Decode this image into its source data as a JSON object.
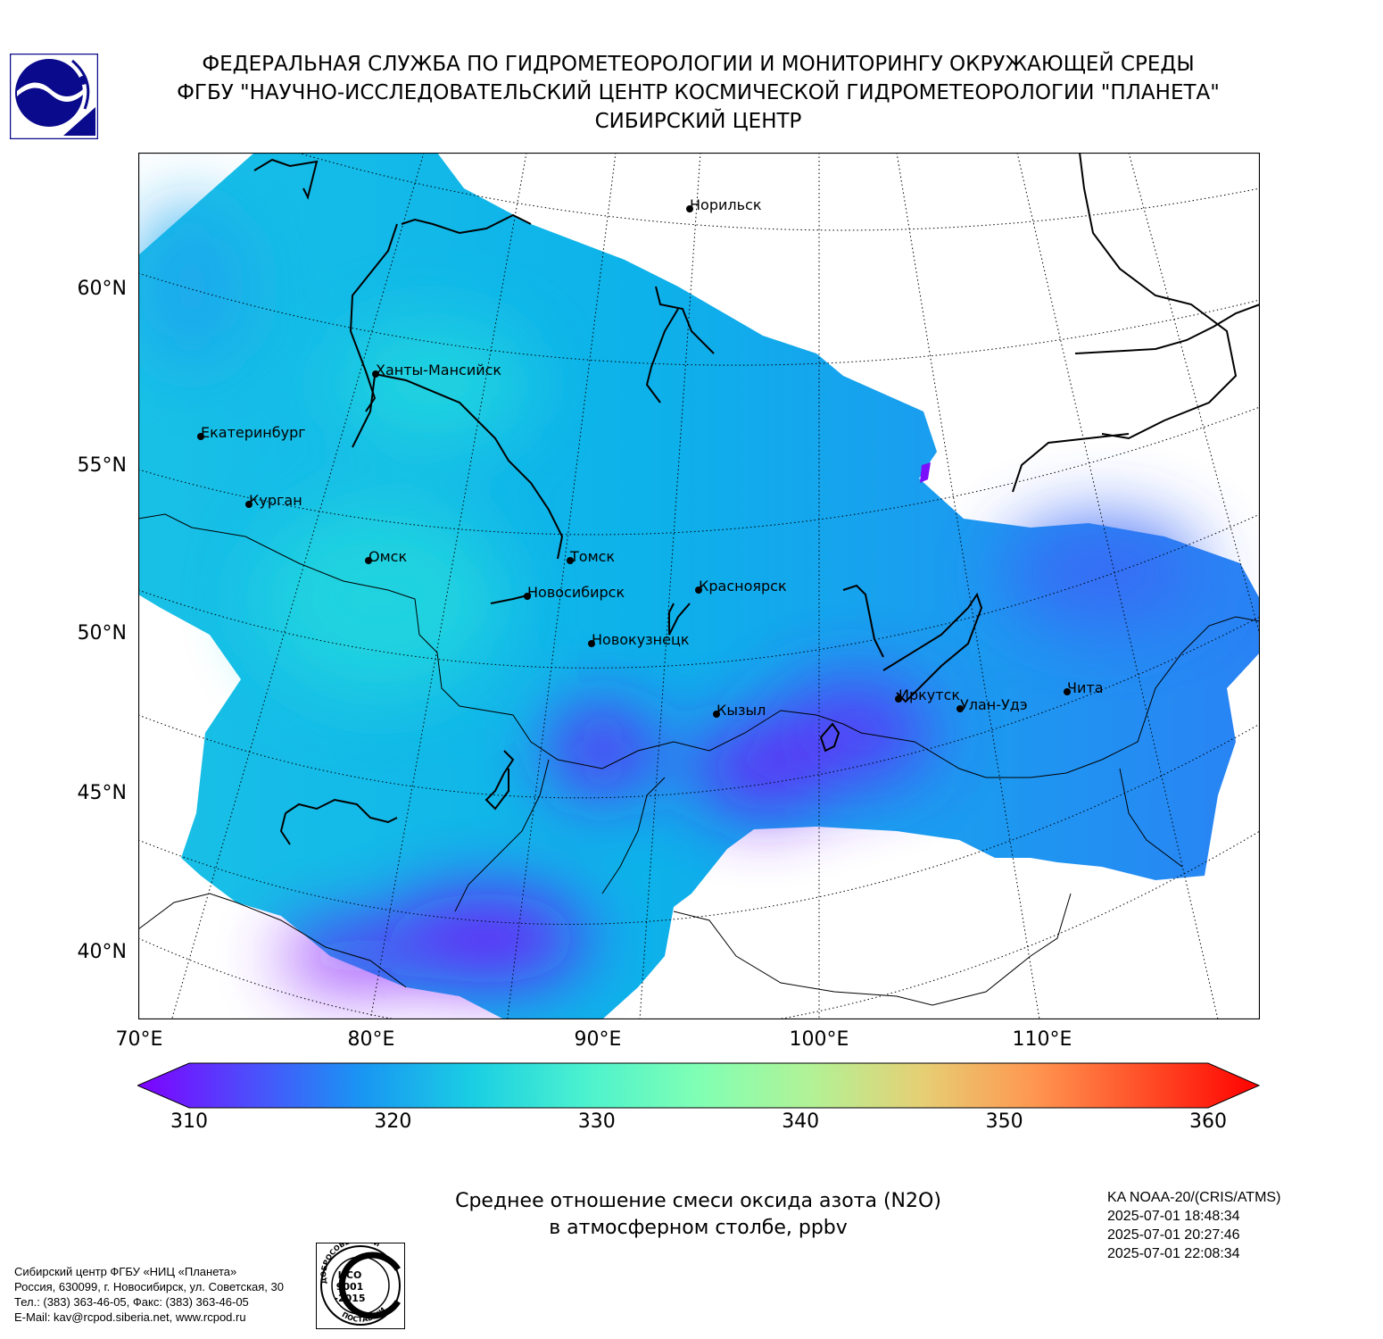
{
  "header": {
    "line1": "ФЕДЕРАЛЬНАЯ СЛУЖБА ПО ГИДРОМЕТЕОРОЛОГИИ И МОНИТОРИНГУ ОКРУЖАЮЩЕЙ СРЕДЫ",
    "line2": "ФГБУ \"НАУЧНО-ИССЛЕДОВАТЕЛЬСКИЙ ЦЕНТР КОСМИЧЕСКОЙ ГИДРОМЕТЕОРОЛОГИИ \"ПЛАНЕТА\"",
    "line3": "СИБИРСКИЙ ЦЕНТР"
  },
  "logo": {
    "name": "planeta-logo",
    "color": "#0a0a8c"
  },
  "map": {
    "lat_labels": [
      "60°N",
      "55°N",
      "50°N",
      "45°N",
      "40°N"
    ],
    "lon_labels": [
      "70°E",
      "80°E",
      "90°E",
      "100°E",
      "110°E"
    ],
    "cities": [
      {
        "name": "Норильск"
      },
      {
        "name": "Ханты-Мансийск"
      },
      {
        "name": "Екатеринбург"
      },
      {
        "name": "Курган"
      },
      {
        "name": "Омск"
      },
      {
        "name": "Томск"
      },
      {
        "name": "Новосибирск"
      },
      {
        "name": "Красноярск"
      },
      {
        "name": "Новокузнецк"
      },
      {
        "name": "Кызыл"
      },
      {
        "name": "Иркутск"
      },
      {
        "name": "Улан-Удэ"
      },
      {
        "name": "Чита"
      }
    ]
  },
  "colorbar": {
    "min": 310,
    "max": 360,
    "ticks": [
      "310",
      "320",
      "330",
      "340",
      "350",
      "360"
    ],
    "colors": [
      "#7f00ff",
      "#4d4dfc",
      "#1996f3",
      "#1acfe3",
      "#4cf2ce",
      "#80ffb4",
      "#b2f296",
      "#e6cf74",
      "#ff9650",
      "#ff4d27",
      "#ff0000"
    ]
  },
  "title": {
    "line1": "Среднее отношение смеси оксида азота (N2O)",
    "line2": "в атмосферном столбе, ppbv"
  },
  "meta": {
    "satellite": "KA NOAA-20/(CRIS/ATMS)",
    "times": [
      "2025-07-01 18:48:34",
      "2025-07-01 20:27:46",
      "2025-07-01 22:08:34"
    ]
  },
  "footer": {
    "lines": [
      "Сибирский центр ФГБУ «НИЦ «Планета»",
      "Россия, 630099, г. Новосибирск, ул. Советская, 30",
      "Тел.: (383) 363-46-05, Факс: (383) 363-46-05",
      "E-Mail: kav@rcpod.siberia.net, www.rcpod.ru"
    ]
  },
  "iso_stamp": {
    "top_text": "ДОБРОСОВЕСТНЫЙ",
    "center_lines": [
      "ИСО",
      "9001",
      "-2015"
    ],
    "bottom_text": "ПОСТАВЩИК"
  }
}
